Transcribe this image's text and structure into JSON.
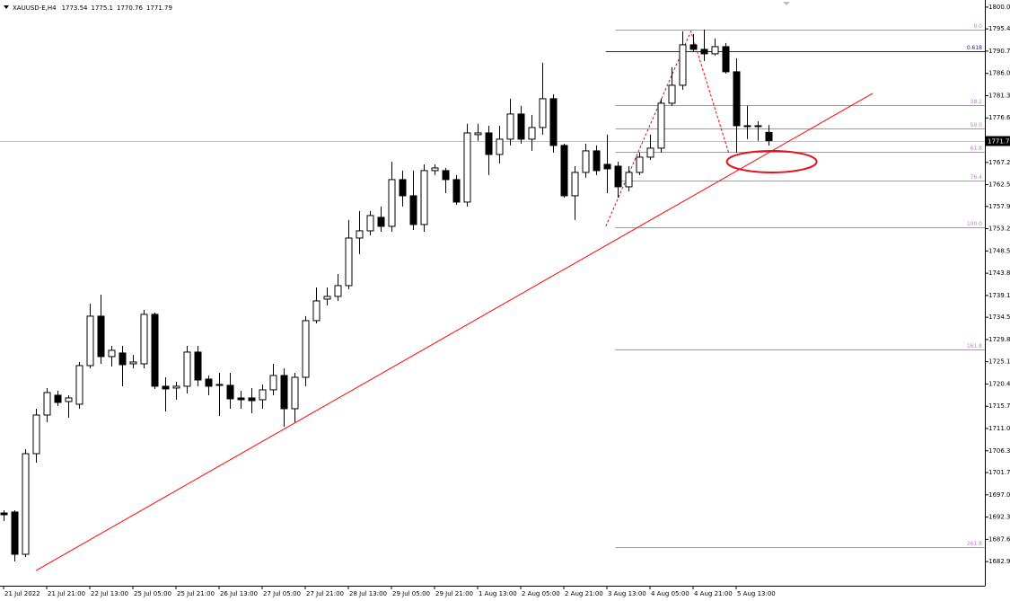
{
  "chart_data": {
    "type": "candlestick",
    "symbol": "XAUUSD-E,H4",
    "up_color": "#ffffff",
    "down_color": "#000000",
    "categories": [
      "21 Jul 2022",
      null,
      null,
      null,
      "21 Jul 21:00",
      null,
      null,
      null,
      "22 Jul 13:00",
      null,
      null,
      null,
      "25 Jul 05:00",
      null,
      null,
      null,
      "25 Jul 21:00",
      null,
      null,
      null,
      "26 Jul 13:00",
      null,
      null,
      null,
      "27 Jul 05:00",
      null,
      null,
      null,
      "27 Jul 21:00",
      null,
      null,
      null,
      "28 Jul 13:00",
      null,
      null,
      null,
      "29 Jul 05:00",
      null,
      null,
      null,
      "29 Jul 21:00",
      null,
      null,
      null,
      "1 Aug 13:00",
      null,
      null,
      null,
      "2 Aug 05:00",
      null,
      null,
      null,
      "2 Aug 21:00",
      null,
      null,
      null,
      "3 Aug 13:00",
      null,
      null,
      null,
      "4 Aug 05:00",
      null,
      null,
      null,
      "4 Aug 21:00",
      null,
      null,
      null,
      "5 Aug 13:00",
      null,
      null,
      null
    ],
    "open": [
      1693.17,
      1693.36,
      1684.44,
      1705.69,
      1713.85,
      1718.03,
      1716.7,
      1716.13,
      1724.29,
      1734.73,
      1726.19,
      1726.95,
      1724.67,
      1724.67,
      1735.11,
      1719.93,
      1719.55,
      1719.93,
      1727.14,
      1721.44,
      1720.12,
      1720.12,
      1717.46,
      1717.46,
      1717.08,
      1719.17,
      1722.2,
      1715.18,
      1721.82,
      1733.78,
      1738.33,
      1738.9,
      1741.18,
      1751.23,
      1752.75,
      1755.6,
      1753.7,
      1763.57,
      1760.15,
      1754.08,
      1765.47,
      1765.47,
      1763.57,
      1758.82,
      1773.06,
      1773.43,
      1768.88,
      1772.11,
      1777.42,
      1772.11,
      1774.57,
      1780.65,
      1770.78,
      1760.15,
      1765.09,
      1769.64,
      1766.79,
      1766.41,
      1762.05,
      1765.09,
      1768.31,
      1770.21,
      1779.7,
      1783.49,
      1792.03,
      1791.08,
      1790.13,
      1791.65,
      1786.34,
      1774.95,
      1774.95,
      1773.54
    ],
    "high": [
      1693.74,
      1693.74,
      1706.64,
      1715.18,
      1719.55,
      1718.98,
      1718.03,
      1725.05,
      1737.38,
      1739.28,
      1728.46,
      1728.46,
      1726.57,
      1736.05,
      1735.49,
      1721.82,
      1720.87,
      1728.46,
      1728.46,
      1722.2,
      1722.77,
      1722.77,
      1718.98,
      1719.55,
      1720.3,
      1724.67,
      1723.72,
      1722.77,
      1734.73,
      1740.8,
      1740.8,
      1743.64,
      1755.03,
      1756.93,
      1756.93,
      1757.88,
      1767.36,
      1765.47,
      1765.47,
      1766.79,
      1766.79,
      1766.03,
      1764.52,
      1775.33,
      1775.33,
      1774.95,
      1774.95,
      1780.65,
      1779.13,
      1777.23,
      1788.24,
      1781.59,
      1771.16,
      1766.41,
      1771.16,
      1770.78,
      1773.06,
      1767.36,
      1766.41,
      1769.26,
      1773.06,
      1780.65,
      1787.29,
      1794.88,
      1794.31,
      1795.26,
      1793.36,
      1792.41,
      1789.18,
      1779.13,
      1775.9,
      1775.1
    ],
    "low": [
      1691.46,
      1682.93,
      1683.87,
      1703.79,
      1712.33,
      1715.75,
      1713.28,
      1715.18,
      1723.72,
      1724.67,
      1724.1,
      1719.93,
      1723.72,
      1723.72,
      1719.36,
      1714.61,
      1717.08,
      1718.41,
      1719.93,
      1718.03,
      1713.66,
      1715.18,
      1715.18,
      1714.23,
      1715.18,
      1718.03,
      1711.38,
      1712.33,
      1719.93,
      1733.21,
      1737.0,
      1737.95,
      1740.42,
      1747.82,
      1751.8,
      1752.56,
      1752.56,
      1757.88,
      1752.94,
      1752.56,
      1764.52,
      1760.72,
      1758.26,
      1757.88,
      1771.73,
      1764.52,
      1766.98,
      1770.78,
      1771.16,
      1769.64,
      1773.06,
      1769.26,
      1759.77,
      1755.03,
      1763.95,
      1764.52,
      1760.72,
      1759.77,
      1761.1,
      1764.52,
      1767.74,
      1769.26,
      1779.13,
      1782.54,
      1790.7,
      1788.62,
      1789.75,
      1785.96,
      1769.26,
      1772.11,
      1771.73,
      1770.76
    ],
    "close": [
      1692.79,
      1684.44,
      1705.69,
      1713.85,
      1718.6,
      1716.51,
      1717.46,
      1724.29,
      1734.73,
      1726.19,
      1727.52,
      1724.48,
      1725.05,
      1735.11,
      1719.93,
      1719.36,
      1719.93,
      1727.14,
      1721.25,
      1719.93,
      1720.3,
      1717.27,
      1717.08,
      1716.89,
      1719.17,
      1722.2,
      1715.18,
      1721.82,
      1733.78,
      1737.95,
      1738.9,
      1741.18,
      1751.23,
      1752.75,
      1755.98,
      1753.7,
      1763.57,
      1760.15,
      1754.08,
      1765.47,
      1766.03,
      1763.57,
      1758.82,
      1773.43,
      1773.43,
      1768.88,
      1772.11,
      1777.42,
      1772.11,
      1774.57,
      1780.65,
      1770.78,
      1760.15,
      1765.09,
      1769.64,
      1765.47,
      1765.84,
      1762.05,
      1765.09,
      1768.31,
      1770.21,
      1779.7,
      1783.49,
      1792.03,
      1791.08,
      1790.13,
      1791.65,
      1786.34,
      1774.95,
      1774.76,
      1774.95,
      1771.79
    ],
    "ylim": [
      1677.8,
      1801.5
    ],
    "yticks": [
      {
        "value": 1800,
        "label": "1800.00"
      },
      {
        "value": 1795.4,
        "label": "1795.40"
      },
      {
        "value": 1790.7,
        "label": "1790.70"
      },
      {
        "value": 1786,
        "label": "1786.00"
      },
      {
        "value": 1781.3,
        "label": "1781.30"
      },
      {
        "value": 1776.6,
        "label": "1776.60"
      },
      {
        "value": 1767.2,
        "label": "1767.20"
      },
      {
        "value": 1762.5,
        "label": "1762.50"
      },
      {
        "value": 1757.9,
        "label": "1757.90"
      },
      {
        "value": 1753.2,
        "label": "1753.20"
      },
      {
        "value": 1748.5,
        "label": "1748.50"
      },
      {
        "value": 1743.8,
        "label": "1743.80"
      },
      {
        "value": 1739.1,
        "label": "1739.10"
      },
      {
        "value": 1734.5,
        "label": "1734.50"
      },
      {
        "value": 1729.8,
        "label": "1729.80"
      },
      {
        "value": 1725.1,
        "label": "1725.10"
      },
      {
        "value": 1720.4,
        "label": "1720.40"
      },
      {
        "value": 1715.7,
        "label": "1715.70"
      },
      {
        "value": 1711,
        "label": "1711.00"
      },
      {
        "value": 1706.3,
        "label": "1706.30"
      },
      {
        "value": 1701.7,
        "label": "1701.70"
      },
      {
        "value": 1697,
        "label": "1697.00"
      },
      {
        "value": 1692.3,
        "label": "1692.30"
      },
      {
        "value": 1687.6,
        "label": "1687.60"
      },
      {
        "value": 1682.9,
        "label": "1682.90"
      }
    ],
    "fibonacci": {
      "color": "#c77ad6",
      "x_start": 56.8,
      "levels": [
        {
          "label": "0.0",
          "value": 1795.26
        },
        {
          "label": "38.2",
          "value": 1779.31
        },
        {
          "label": "50.0",
          "value": 1774.39
        },
        {
          "label": "61.8",
          "value": 1769.46
        },
        {
          "label": "76.4",
          "value": 1763.36
        },
        {
          "label": "100.0",
          "value": 1753.51
        },
        {
          "label": "161.8",
          "value": 1727.71
        },
        {
          "label": "261.8",
          "value": 1685.96
        }
      ]
    },
    "level_line": {
      "label": "0.618",
      "value": 1790.7,
      "color": "#1a1a8c",
      "x_start": 55.9
    },
    "trendline": {
      "color": "#ff0000",
      "x": [
        3,
        80.67
      ],
      "y": [
        1681.0,
        1781.78
      ]
    },
    "zigzag": {
      "color": "#ff0000",
      "x": [
        55.9,
        63.8,
        67.3
      ],
      "y": [
        1753.7,
        1794.88,
        1769.26
      ]
    },
    "ellipse": {
      "color": "#e8101a",
      "x": 71.3,
      "y": 1767.36
    }
  }
}
